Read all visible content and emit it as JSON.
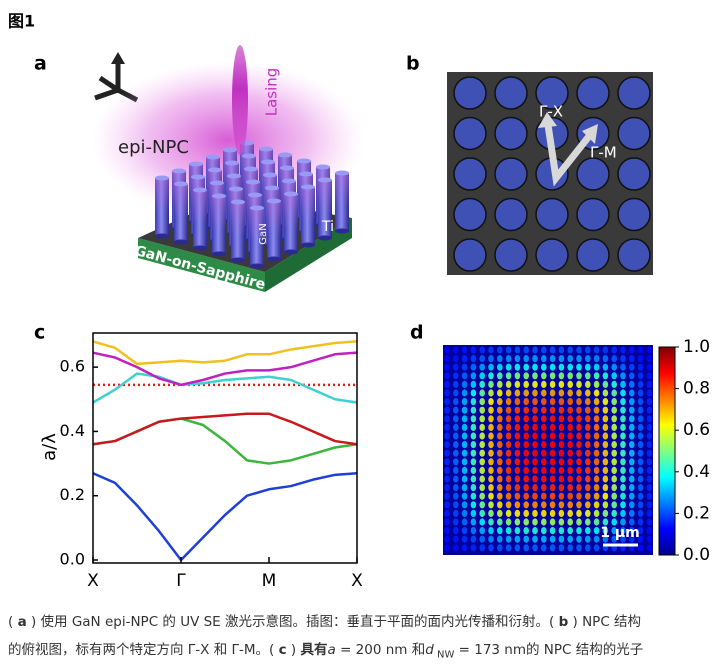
{
  "figure_label": "图1",
  "panel_a": {
    "label": "a",
    "epi_npc": "epi-NPC",
    "lasing": "Lasing",
    "gan": "GaN",
    "ti": "Ti",
    "substrate": "GaN-on-Sapphire"
  },
  "panel_b": {
    "label": "b",
    "direction_x": "Γ-X",
    "direction_m": "Γ-M"
  },
  "chart_data": [
    {
      "type": "line",
      "panel": "c",
      "ylabel": "a/λ",
      "x": [
        0,
        0.25,
        0.5,
        0.75,
        1,
        1.25,
        1.5,
        1.75,
        2,
        2.25,
        2.5,
        2.75,
        3
      ],
      "xlim": [
        0,
        3
      ],
      "xticks": [
        {
          "value": 0,
          "label": "X"
        },
        {
          "value": 1,
          "label": "Γ"
        },
        {
          "value": 2,
          "label": "M"
        },
        {
          "value": 3,
          "label": "X"
        }
      ],
      "ylim": [
        0,
        0.7
      ],
      "yticks": [
        {
          "value": 0,
          "label": "0.0"
        },
        0.2,
        0.4,
        0.6
      ],
      "series": [
        {
          "color": "#1f3fd6",
          "values": [
            0.27,
            0.24,
            0.17,
            0.09,
            0.0,
            0.07,
            0.14,
            0.2,
            0.22,
            0.23,
            0.25,
            0.265,
            0.27
          ]
        },
        {
          "color": "#3cb53c",
          "values": [
            0.36,
            0.37,
            0.4,
            0.43,
            0.44,
            0.42,
            0.37,
            0.31,
            0.3,
            0.31,
            0.33,
            0.35,
            0.36
          ]
        },
        {
          "color": "#c8191e",
          "values": [
            0.36,
            0.37,
            0.4,
            0.43,
            0.44,
            0.445,
            0.45,
            0.455,
            0.455,
            0.43,
            0.4,
            0.37,
            0.36
          ]
        },
        {
          "color": "#3fd0d0",
          "values": [
            0.49,
            0.53,
            0.58,
            0.57,
            0.545,
            0.55,
            0.56,
            0.565,
            0.57,
            0.56,
            0.53,
            0.5,
            0.49
          ]
        },
        {
          "color": "#c020c0",
          "values": [
            0.645,
            0.63,
            0.6,
            0.565,
            0.545,
            0.56,
            0.58,
            0.59,
            0.59,
            0.6,
            0.62,
            0.64,
            0.645
          ]
        },
        {
          "color": "#f0c020",
          "values": [
            0.68,
            0.66,
            0.61,
            0.615,
            0.62,
            0.615,
            0.62,
            0.64,
            0.64,
            0.655,
            0.665,
            0.675,
            0.68
          ]
        }
      ],
      "hline": {
        "value": 0.545,
        "color": "#e02020",
        "style": "dotted"
      }
    },
    {
      "type": "heatmap",
      "panel": "d",
      "colormap": "jet",
      "clim": [
        0,
        1
      ],
      "cticks": [
        {
          "value": 0,
          "label": "0.0"
        },
        0.2,
        0.4,
        0.6,
        0.8,
        {
          "value": 1,
          "label": "1.0"
        }
      ],
      "scale_bar": "1 μm"
    }
  ],
  "caption": [
    [
      {
        "text": "( "
      },
      {
        "text": "a",
        "style": "b"
      },
      {
        "text": " ) 使用 GaN epi-NPC 的 UV SE 激光示意图。插图：垂直于平面的面内光传播和衍射。( "
      },
      {
        "text": "b",
        "style": "b"
      },
      {
        "text": " ) NPC 结构"
      }
    ],
    [
      {
        "text": "的俯视图，标有两个特定方向 Γ-X 和 Γ-M。( "
      },
      {
        "text": "c",
        "style": "b"
      },
      {
        "text": " ) "
      },
      {
        "text": "具有",
        "style": "b"
      },
      {
        "text": "a",
        "style": "i"
      },
      {
        "text": "  = 200 nm 和"
      },
      {
        "text": "d",
        "style": "i"
      },
      {
        "text": " NW",
        "style": "sub"
      },
      {
        "text": "  = 173 nm的 NPC 结构的光子"
      }
    ]
  ]
}
